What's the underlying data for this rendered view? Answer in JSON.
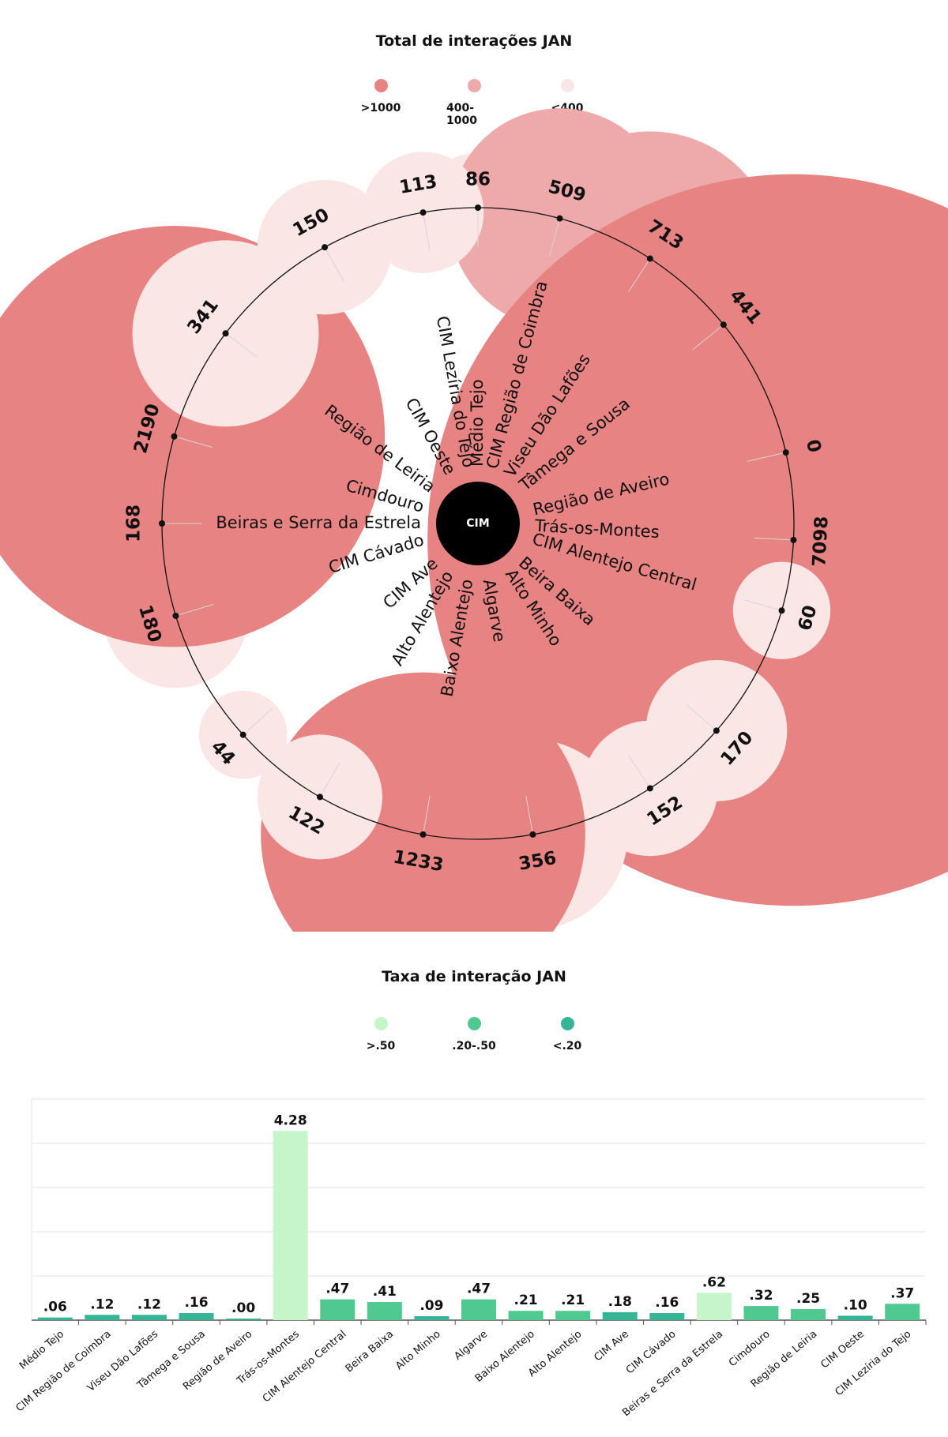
{
  "chart_data": [
    {
      "type": "radial-bubble",
      "title": "Total de interações JAN",
      "center_label": "CIM",
      "legend": [
        {
          "label": ">1000",
          "color": "#e88383"
        },
        {
          "label": "400-1000",
          "color": "#eeaaaa"
        },
        {
          "label": "<400",
          "color": "#fbe6e6"
        }
      ],
      "categories": [
        "Médio Tejo",
        "CIM Região de Coimbra",
        "Viseu Dão Lafões",
        "Tâmega e Sousa",
        "Região de Aveiro",
        "Trás-os-Montes",
        "CIM Alentejo Central",
        "Beira Baixa",
        "Alto Minho",
        "Algarve",
        "Baixo Alentejo",
        "Alto Alentejo",
        "CIM Ave",
        "CIM Cávado",
        "Beiras e Serra da Estrela",
        "Cimdouro",
        "Região de Leiria",
        "CIM Oeste",
        "CIM Lezíria do Tejo"
      ],
      "values": [
        86,
        509,
        713,
        441,
        0,
        7098,
        60,
        170,
        152,
        356,
        1233,
        122,
        44,
        180,
        168,
        2190,
        341,
        150,
        113
      ]
    },
    {
      "type": "bar",
      "title": "Taxa de interação JAN",
      "legend": [
        {
          "label": ">.50",
          "color": "#c5f5c8"
        },
        {
          "label": ".20-.50",
          "color": "#50c991"
        },
        {
          "label": "<.20",
          "color": "#35b595"
        }
      ],
      "categories": [
        "Médio Tejo",
        "CIM Região de Coimbra",
        "Viseu Dão Lafões",
        "Tâmega e Sousa",
        "Região de Aveiro",
        "Trás-os-Montes",
        "CIM Alentejo Central",
        "Beira Baixa",
        "Alto Minho",
        "Algarve",
        "Baixo Alentejo",
        "Alto Alentejo",
        "CIM Ave",
        "CIM Cávado",
        "Beiras e Serra da Estrela",
        "Cimdouro",
        "Região de Leiria",
        "CIM Oeste",
        "CIM Lezíria do Tejo"
      ],
      "values": [
        0.06,
        0.12,
        0.12,
        0.16,
        0.0,
        4.28,
        0.47,
        0.41,
        0.09,
        0.47,
        0.21,
        0.21,
        0.18,
        0.16,
        0.62,
        0.32,
        0.25,
        0.1,
        0.37
      ],
      "value_labels": [
        ".06",
        ".12",
        ".12",
        ".16",
        ".00",
        "4.28",
        ".47",
        ".41",
        ".09",
        ".47",
        ".21",
        ".21",
        ".18",
        ".16",
        ".62",
        ".32",
        ".25",
        ".10",
        ".37"
      ],
      "ylim": [
        0,
        5
      ],
      "grid": true
    }
  ]
}
